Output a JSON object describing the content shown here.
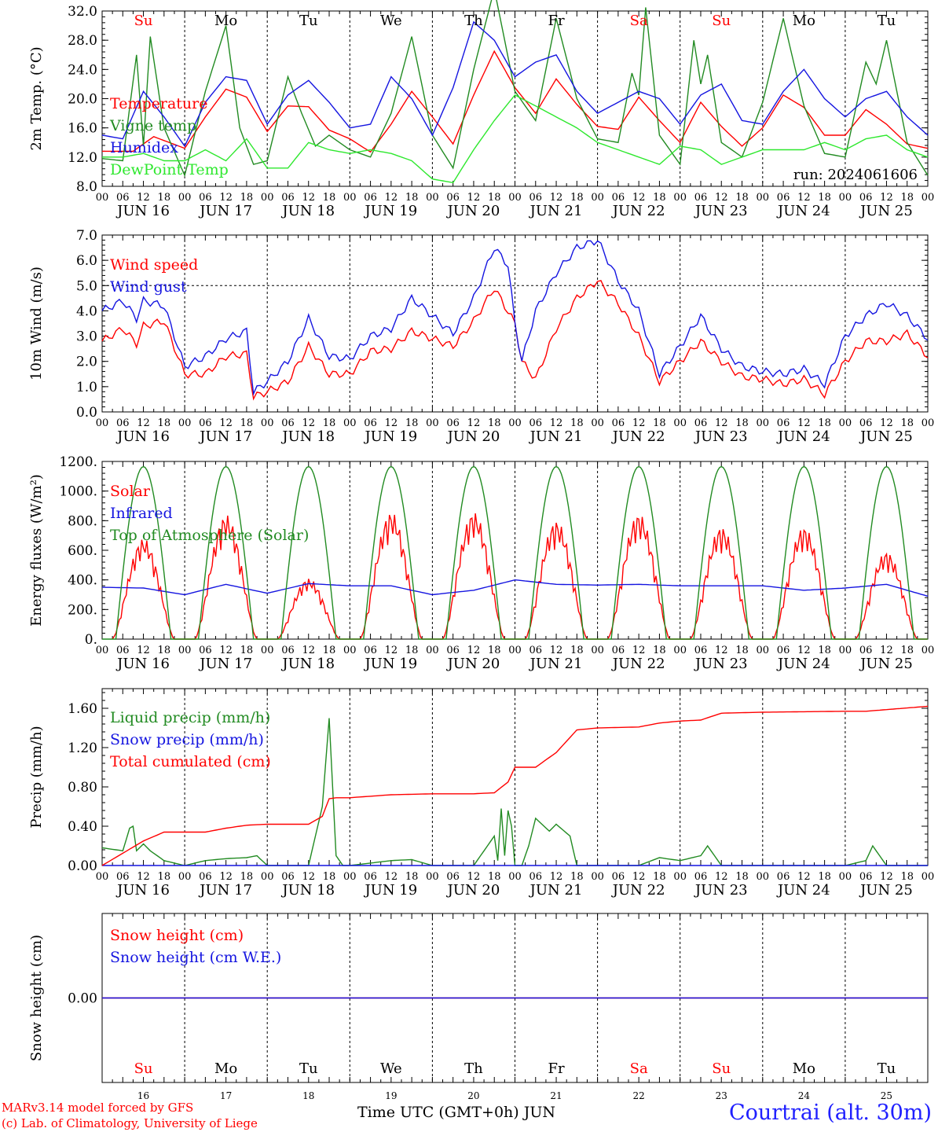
{
  "run_label": "run: 2024061606",
  "hour_ticks": [
    "00",
    "06",
    "12",
    "18"
  ],
  "day_labels": [
    "JUN 16",
    "JUN 17",
    "JUN 18",
    "JUN 19",
    "JUN 20",
    "JUN 21",
    "JUN 22",
    "JUN 23",
    "JUN 24",
    "JUN 25"
  ],
  "weekdays": [
    {
      "label": "Su",
      "color": "#ff0000"
    },
    {
      "label": "Mo",
      "color": "#000000"
    },
    {
      "label": "Tu",
      "color": "#000000"
    },
    {
      "label": "We",
      "color": "#000000"
    },
    {
      "label": "Th",
      "color": "#000000"
    },
    {
      "label": "Fr",
      "color": "#000000"
    },
    {
      "label": "Sa",
      "color": "#ff0000"
    },
    {
      "label": "Su",
      "color": "#ff0000"
    },
    {
      "label": "Mo",
      "color": "#000000"
    },
    {
      "label": "Tu",
      "color": "#000000"
    }
  ],
  "day_numbers": [
    "16",
    "17",
    "18",
    "19",
    "20",
    "21",
    "22",
    "23",
    "24",
    "25"
  ],
  "footer": {
    "model": "MARv3.14 model forced by GFS",
    "credit": "(c) Lab. of Climatology, University of Liege",
    "xaxis_title": "Time UTC (GMT+0h) JUN",
    "station": "Courtrai (alt. 30m)"
  },
  "colors": {
    "red": "#ff0000",
    "darkgreen": "#228b22",
    "blue": "#1515e0",
    "lightgreen": "#2ee82e",
    "purple": "#8b008b"
  },
  "chart_data": [
    {
      "type": "line",
      "ylabel": "2m Temp. (°C)",
      "ylim": [
        8,
        32
      ],
      "yticks": [
        "32.0",
        "28.0",
        "24.0",
        "20.0",
        "16.0",
        "12.0",
        "8.0"
      ],
      "x_unit": "hours since JUN 16 00 UTC",
      "x_range": [
        0,
        240
      ],
      "series": [
        {
          "name": "Temperature",
          "color": "#ff0000",
          "x": [
            0,
            9,
            15,
            24,
            30,
            36,
            42,
            48,
            54,
            60,
            66,
            72,
            78,
            84,
            90,
            96,
            102,
            108,
            114,
            120,
            126,
            132,
            138,
            144,
            150,
            156,
            162,
            168,
            174,
            180,
            186,
            192,
            198,
            204,
            210,
            216,
            222,
            228,
            234,
            240
          ],
          "y": [
            12.8,
            12.8,
            14.8,
            13.2,
            17.5,
            21.3,
            20.2,
            15.5,
            19.0,
            18.9,
            15.7,
            14.5,
            12.7,
            16.5,
            21.0,
            17.5,
            13.8,
            20.5,
            26.5,
            21.5,
            18.0,
            22.7,
            19.2,
            16.2,
            15.8,
            20.2,
            17.0,
            14.0,
            19.5,
            16.2,
            13.5,
            16.0,
            20.5,
            18.8,
            15.0,
            15.0,
            18.5,
            16.5,
            13.8,
            13.2
          ]
        },
        {
          "name": "Vigne temp",
          "color": "#228b22",
          "x": [
            0,
            6,
            10,
            12,
            14,
            18,
            24,
            30,
            36,
            40,
            44,
            48,
            54,
            58,
            62,
            66,
            72,
            78,
            84,
            90,
            96,
            102,
            108,
            114,
            120,
            126,
            132,
            138,
            144,
            150,
            154,
            156,
            158,
            162,
            168,
            172,
            174,
            176,
            180,
            186,
            192,
            198,
            204,
            210,
            216,
            222,
            225,
            228,
            234,
            240
          ],
          "y": [
            11.8,
            11.5,
            26.0,
            13.5,
            28.5,
            16.0,
            9.5,
            21.0,
            30.0,
            16.0,
            11.0,
            11.5,
            23.0,
            18.0,
            13.5,
            15.0,
            13.0,
            12.0,
            18.0,
            28.5,
            15.0,
            10.5,
            24.0,
            35.0,
            21.0,
            17.0,
            31.0,
            20.0,
            14.5,
            14.0,
            23.5,
            20.5,
            32.5,
            15.0,
            11.0,
            28.0,
            22.0,
            26.0,
            14.0,
            12.0,
            19.5,
            31.0,
            19.0,
            12.5,
            12.0,
            25.0,
            22.0,
            28.0,
            14.0,
            9.5
          ]
        },
        {
          "name": "Humidex",
          "color": "#1515e0",
          "x": [
            0,
            6,
            12,
            18,
            24,
            30,
            36,
            42,
            48,
            54,
            60,
            66,
            72,
            78,
            84,
            90,
            96,
            102,
            108,
            114,
            120,
            126,
            132,
            138,
            144,
            150,
            156,
            162,
            168,
            174,
            180,
            186,
            192,
            198,
            204,
            210,
            216,
            222,
            228,
            234,
            240
          ],
          "y": [
            15.0,
            14.5,
            21.0,
            17.5,
            13.5,
            19.5,
            23.0,
            22.5,
            16.5,
            20.5,
            22.5,
            19.5,
            16.0,
            16.5,
            23.0,
            20.0,
            15.0,
            21.5,
            30.5,
            28.0,
            23.0,
            25.0,
            26.0,
            21.0,
            18.0,
            19.5,
            21.0,
            20.0,
            16.5,
            20.5,
            22.0,
            17.0,
            16.5,
            21.0,
            24.0,
            20.0,
            17.5,
            20.0,
            21.0,
            17.5,
            15.0
          ]
        },
        {
          "name": "DewPoint Temp",
          "color": "#2ee82e",
          "x": [
            0,
            6,
            12,
            18,
            24,
            30,
            36,
            42,
            48,
            54,
            60,
            66,
            72,
            78,
            84,
            90,
            96,
            102,
            108,
            114,
            120,
            126,
            132,
            138,
            144,
            150,
            156,
            162,
            168,
            174,
            180,
            186,
            192,
            198,
            204,
            210,
            216,
            222,
            228,
            234,
            240
          ],
          "y": [
            12.0,
            12.0,
            12.5,
            11.5,
            11.5,
            13.0,
            11.5,
            14.5,
            10.5,
            10.5,
            14.0,
            13.0,
            12.5,
            13.0,
            12.5,
            11.5,
            9.0,
            8.5,
            13.0,
            17.0,
            20.5,
            19.0,
            17.5,
            16.0,
            14.0,
            13.0,
            12.0,
            11.0,
            13.5,
            13.0,
            11.0,
            12.0,
            13.0,
            13.0,
            13.0,
            14.0,
            13.0,
            14.5,
            15.0,
            13.0,
            12.0
          ]
        }
      ],
      "legend": [
        "Temperature",
        "Vigne temp",
        "Humidex",
        "DewPoint Temp"
      ]
    },
    {
      "type": "line",
      "ylabel": "10m Wind (m/s)",
      "ylim": [
        0,
        7
      ],
      "yticks": [
        "7.0",
        "6.0",
        "5.0",
        "4.0",
        "3.0",
        "2.0",
        "1.0",
        "0.0"
      ],
      "hline": 5.0,
      "series": [
        {
          "name": "Wind speed",
          "color": "#ff0000",
          "x": [
            0,
            6,
            10,
            12,
            18,
            24,
            30,
            36,
            42,
            44,
            48,
            54,
            60,
            66,
            72,
            78,
            84,
            90,
            96,
            102,
            108,
            114,
            120,
            122,
            126,
            132,
            138,
            144,
            150,
            156,
            162,
            168,
            174,
            180,
            186,
            192,
            198,
            204,
            210,
            216,
            222,
            228,
            234,
            240
          ],
          "y": [
            2.8,
            3.3,
            2.7,
            3.4,
            3.6,
            1.5,
            1.5,
            2.2,
            2.3,
            0.6,
            0.8,
            1.2,
            2.6,
            1.5,
            1.5,
            2.4,
            2.5,
            3.2,
            2.9,
            2.6,
            3.6,
            4.9,
            3.5,
            2.0,
            1.3,
            3.3,
            4.5,
            5.2,
            4.3,
            3.0,
            1.2,
            2.0,
            2.8,
            2.0,
            1.4,
            1.3,
            1.1,
            1.3,
            0.7,
            2.0,
            2.8,
            2.8,
            3.1,
            2.2
          ]
        },
        {
          "name": "Wind gust",
          "color": "#1515e0",
          "x": [
            0,
            6,
            10,
            12,
            18,
            24,
            30,
            36,
            42,
            44,
            48,
            54,
            60,
            66,
            72,
            78,
            84,
            90,
            96,
            102,
            108,
            114,
            118,
            120,
            122,
            126,
            132,
            138,
            144,
            150,
            156,
            162,
            168,
            174,
            180,
            186,
            192,
            198,
            204,
            210,
            216,
            222,
            228,
            234,
            240
          ],
          "y": [
            4.0,
            4.4,
            3.7,
            4.4,
            4.2,
            1.8,
            2.2,
            2.9,
            3.2,
            0.8,
            1.2,
            2.0,
            3.7,
            2.2,
            2.1,
            3.0,
            3.3,
            4.5,
            3.8,
            3.1,
            4.5,
            6.5,
            5.8,
            3.5,
            2.0,
            4.0,
            5.5,
            6.5,
            6.8,
            5.2,
            4.0,
            1.5,
            2.6,
            3.8,
            2.5,
            1.8,
            1.6,
            1.5,
            1.7,
            1.1,
            3.0,
            3.8,
            4.3,
            3.8,
            2.9
          ]
        }
      ],
      "legend": [
        "Wind speed",
        "Wind gust"
      ]
    },
    {
      "type": "line",
      "ylabel": "Energy fluxes (W/m²)",
      "ylim": [
        0,
        1200
      ],
      "yticks": [
        "1200.",
        "1000.",
        "800.",
        "600.",
        "400.",
        "200.",
        "0."
      ],
      "series": [
        {
          "name": "Solar",
          "color": "#ff0000",
          "solar_peaks": [
            680,
            840,
            410,
            860,
            860,
            800,
            850,
            760,
            760,
            590
          ]
        },
        {
          "name": "Infrared",
          "color": "#1515e0",
          "x": [
            0,
            12,
            24,
            36,
            48,
            60,
            72,
            84,
            96,
            108,
            120,
            132,
            144,
            156,
            168,
            180,
            192,
            204,
            216,
            228,
            240
          ],
          "y": [
            350,
            345,
            300,
            370,
            310,
            375,
            360,
            360,
            300,
            330,
            400,
            370,
            365,
            370,
            360,
            360,
            360,
            330,
            345,
            370,
            290
          ]
        },
        {
          "name": "Top of Atmosphere (Solar)",
          "color": "#228b22",
          "peak": 1165
        }
      ],
      "legend": [
        "Solar",
        "Infrared",
        "Top of Atmosphere (Solar)"
      ]
    },
    {
      "type": "line",
      "ylabel": "Precip (mm/h)",
      "ylim": [
        0,
        1.8
      ],
      "yticks": [
        "1.60",
        "1.20",
        "0.80",
        "0.40",
        "0.00"
      ],
      "series": [
        {
          "name": "Liquid precip (mm/h)",
          "color": "#228b22",
          "x": [
            0,
            6,
            8,
            9,
            10,
            12,
            14,
            18,
            24,
            30,
            36,
            42,
            45,
            48,
            60,
            64,
            66,
            68,
            70,
            72,
            84,
            90,
            96,
            108,
            114,
            115,
            116,
            117,
            118,
            119,
            120,
            122,
            124,
            126,
            130,
            132,
            136,
            138,
            140,
            144,
            156,
            162,
            168,
            174,
            176,
            180,
            216,
            222,
            224,
            228,
            240
          ],
          "y": [
            0.18,
            0.15,
            0.38,
            0.4,
            0.15,
            0.22,
            0.15,
            0.05,
            0,
            0.05,
            0.07,
            0.08,
            0.1,
            0,
            0,
            0.6,
            1.5,
            0.1,
            0,
            0,
            0.05,
            0.06,
            0,
            0,
            0.3,
            0.05,
            0.58,
            0.1,
            0.56,
            0.4,
            0,
            0,
            0.2,
            0.48,
            0.35,
            0.42,
            0.3,
            0,
            0,
            0,
            0,
            0.08,
            0.05,
            0.1,
            0.2,
            0,
            0,
            0.05,
            0.2,
            0,
            0
          ]
        },
        {
          "name": "Snow precip (mm/h)",
          "color": "#1515e0",
          "x": [
            0,
            240
          ],
          "y": [
            0,
            0
          ]
        },
        {
          "name": "Total cumulated (cm)",
          "color": "#ff0000",
          "x": [
            0,
            12,
            18,
            30,
            36,
            42,
            48,
            60,
            64,
            66,
            68,
            72,
            84,
            96,
            108,
            114,
            118,
            120,
            126,
            132,
            138,
            144,
            156,
            162,
            168,
            174,
            180,
            192,
            216,
            222,
            240
          ],
          "y": [
            0,
            0.25,
            0.34,
            0.34,
            0.38,
            0.41,
            0.42,
            0.42,
            0.5,
            0.68,
            0.69,
            0.69,
            0.72,
            0.73,
            0.73,
            0.74,
            0.85,
            1.0,
            1.0,
            1.15,
            1.38,
            1.4,
            1.41,
            1.45,
            1.47,
            1.48,
            1.55,
            1.56,
            1.57,
            1.57,
            1.62
          ]
        }
      ],
      "legend": [
        "Liquid precip (mm/h)",
        "Snow precip (mm/h)",
        "Total cumulated (cm)"
      ]
    },
    {
      "type": "line",
      "ylabel": "Snow height (cm)",
      "ylim": [
        -1,
        1
      ],
      "yticks": [
        "0.00"
      ],
      "series": [
        {
          "name": "Snow height (cm)",
          "color": "#ff0000",
          "x": [
            0,
            240
          ],
          "y": [
            0,
            0
          ]
        },
        {
          "name": "Snow height (cm W.E.)",
          "color": "#1515e0",
          "x": [
            0,
            240
          ],
          "y": [
            0,
            0
          ]
        }
      ],
      "legend": [
        "Snow height (cm)",
        "Snow height (cm W.E.)"
      ]
    }
  ]
}
